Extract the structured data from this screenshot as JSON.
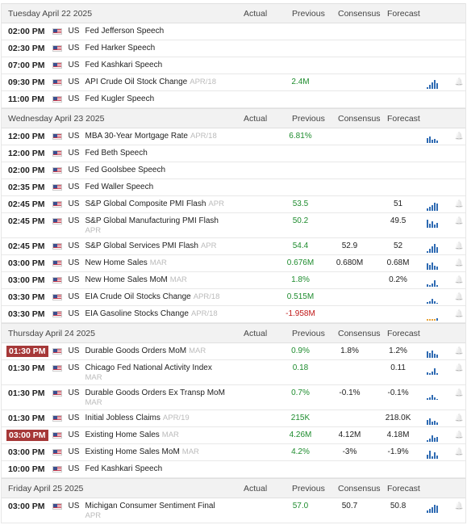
{
  "columns": {
    "actual": "Actual",
    "previous": "Previous",
    "consensus": "Consensus",
    "forecast": "Forecast"
  },
  "days": [
    {
      "date": "Tuesday April 22 2025",
      "rows": [
        {
          "time": "02:00 PM",
          "country": "US",
          "event": "Fed Jefferson Speech",
          "period": "",
          "actual": "",
          "previous": "",
          "consensus": "",
          "forecast": "",
          "chart": false
        },
        {
          "time": "02:30 PM",
          "country": "US",
          "event": "Fed Harker Speech",
          "period": "",
          "actual": "",
          "previous": "",
          "consensus": "",
          "forecast": "",
          "chart": false
        },
        {
          "time": "07:00 PM",
          "country": "US",
          "event": "Fed Kashkari Speech",
          "period": "",
          "actual": "",
          "previous": "",
          "consensus": "",
          "forecast": "",
          "chart": false
        },
        {
          "time": "09:30 PM",
          "country": "US",
          "event": "API Crude Oil Stock Change",
          "period": "APR/18",
          "actual": "",
          "previous": "2.4M",
          "consensus": "",
          "forecast": "",
          "chart": true
        },
        {
          "time": "11:00 PM",
          "country": "US",
          "event": "Fed Kugler Speech",
          "period": "",
          "actual": "",
          "previous": "",
          "consensus": "",
          "forecast": "",
          "chart": false
        }
      ]
    },
    {
      "date": "Wednesday April 23 2025",
      "rows": [
        {
          "time": "12:00 PM",
          "country": "US",
          "event": "MBA 30-Year Mortgage Rate",
          "period": "APR/18",
          "actual": "",
          "previous": "6.81%",
          "consensus": "",
          "forecast": "",
          "chart": true
        },
        {
          "time": "12:00 PM",
          "country": "US",
          "event": "Fed Beth Speech",
          "period": "",
          "actual": "",
          "previous": "",
          "consensus": "",
          "forecast": "",
          "chart": false
        },
        {
          "time": "02:00 PM",
          "country": "US",
          "event": "Fed Goolsbee Speech",
          "period": "",
          "actual": "",
          "previous": "",
          "consensus": "",
          "forecast": "",
          "chart": false
        },
        {
          "time": "02:35 PM",
          "country": "US",
          "event": "Fed Waller Speech",
          "period": "",
          "actual": "",
          "previous": "",
          "consensus": "",
          "forecast": "",
          "chart": false
        },
        {
          "time": "02:45 PM",
          "country": "US",
          "event": "S&P Global Composite PMI Flash",
          "period": "APR",
          "actual": "",
          "previous": "53.5",
          "consensus": "",
          "forecast": "51",
          "chart": true
        },
        {
          "time": "02:45 PM",
          "country": "US",
          "event": "S&P Global Manufacturing PMI Flash",
          "period": "APR",
          "actual": "",
          "previous": "50.2",
          "consensus": "",
          "forecast": "49.5",
          "chart": true,
          "tall": true
        },
        {
          "time": "02:45 PM",
          "country": "US",
          "event": "S&P Global Services PMI Flash",
          "period": "APR",
          "actual": "",
          "previous": "54.4",
          "consensus": "52.9",
          "forecast": "52",
          "chart": true
        },
        {
          "time": "03:00 PM",
          "country": "US",
          "event": "New Home Sales",
          "period": "MAR",
          "actual": "",
          "previous": "0.676M",
          "consensus": "0.680M",
          "forecast": "0.68M",
          "chart": true
        },
        {
          "time": "03:00 PM",
          "country": "US",
          "event": "New Home Sales MoM",
          "period": "MAR",
          "actual": "",
          "previous": "1.8%",
          "consensus": "",
          "forecast": "0.2%",
          "chart": true
        },
        {
          "time": "03:30 PM",
          "country": "US",
          "event": "EIA Crude Oil Stocks Change",
          "period": "APR/18",
          "actual": "",
          "previous": "0.515M",
          "consensus": "",
          "forecast": "",
          "chart": true
        },
        {
          "time": "03:30 PM",
          "country": "US",
          "event": "EIA Gasoline Stocks Change",
          "period": "APR/18",
          "actual": "",
          "previous": "-1.958M",
          "prevColor": "red",
          "consensus": "",
          "forecast": "",
          "chart": true,
          "orange": true
        }
      ]
    },
    {
      "date": "Thursday April 24 2025",
      "rows": [
        {
          "time": "01:30 PM",
          "highlight": true,
          "country": "US",
          "event": "Durable Goods Orders MoM",
          "period": "MAR",
          "actual": "",
          "previous": "0.9%",
          "consensus": "1.8%",
          "forecast": "1.2%",
          "chart": true
        },
        {
          "time": "01:30 PM",
          "country": "US",
          "event": "Chicago Fed National Activity Index",
          "period": "MAR",
          "actual": "",
          "previous": "0.18",
          "consensus": "",
          "forecast": "0.11",
          "chart": true,
          "tall": true
        },
        {
          "time": "01:30 PM",
          "country": "US",
          "event": "Durable Goods Orders Ex Transp MoM",
          "period": "MAR",
          "actual": "",
          "previous": "0.7%",
          "consensus": "-0.1%",
          "forecast": "-0.1%",
          "chart": true,
          "tall": true
        },
        {
          "time": "01:30 PM",
          "country": "US",
          "event": "Initial Jobless Claims",
          "period": "APR/19",
          "actual": "",
          "previous": "215K",
          "consensus": "",
          "forecast": "218.0K",
          "chart": true
        },
        {
          "time": "03:00 PM",
          "highlight": true,
          "country": "US",
          "event": "Existing Home Sales",
          "period": "MAR",
          "actual": "",
          "previous": "4.26M",
          "consensus": "4.12M",
          "forecast": "4.18M",
          "chart": true
        },
        {
          "time": "03:00 PM",
          "country": "US",
          "event": "Existing Home Sales MoM",
          "period": "MAR",
          "actual": "",
          "previous": "4.2%",
          "consensus": "-3%",
          "forecast": "-1.9%",
          "chart": true
        },
        {
          "time": "10:00 PM",
          "country": "US",
          "event": "Fed Kashkari Speech",
          "period": "",
          "actual": "",
          "previous": "",
          "consensus": "",
          "forecast": "",
          "chart": false
        }
      ]
    },
    {
      "date": "Friday April 25 2025",
      "rows": [
        {
          "time": "03:00 PM",
          "country": "US",
          "event": "Michigan Consumer Sentiment Final",
          "period": "APR",
          "actual": "",
          "previous": "57.0",
          "consensus": "50.7",
          "forecast": "50.8",
          "chart": true,
          "tall": true
        }
      ]
    }
  ],
  "colors": {
    "highlight": "#a63838",
    "positive": "#1e8c2e",
    "negative": "#c01818",
    "chart": "#2f6bb3"
  }
}
